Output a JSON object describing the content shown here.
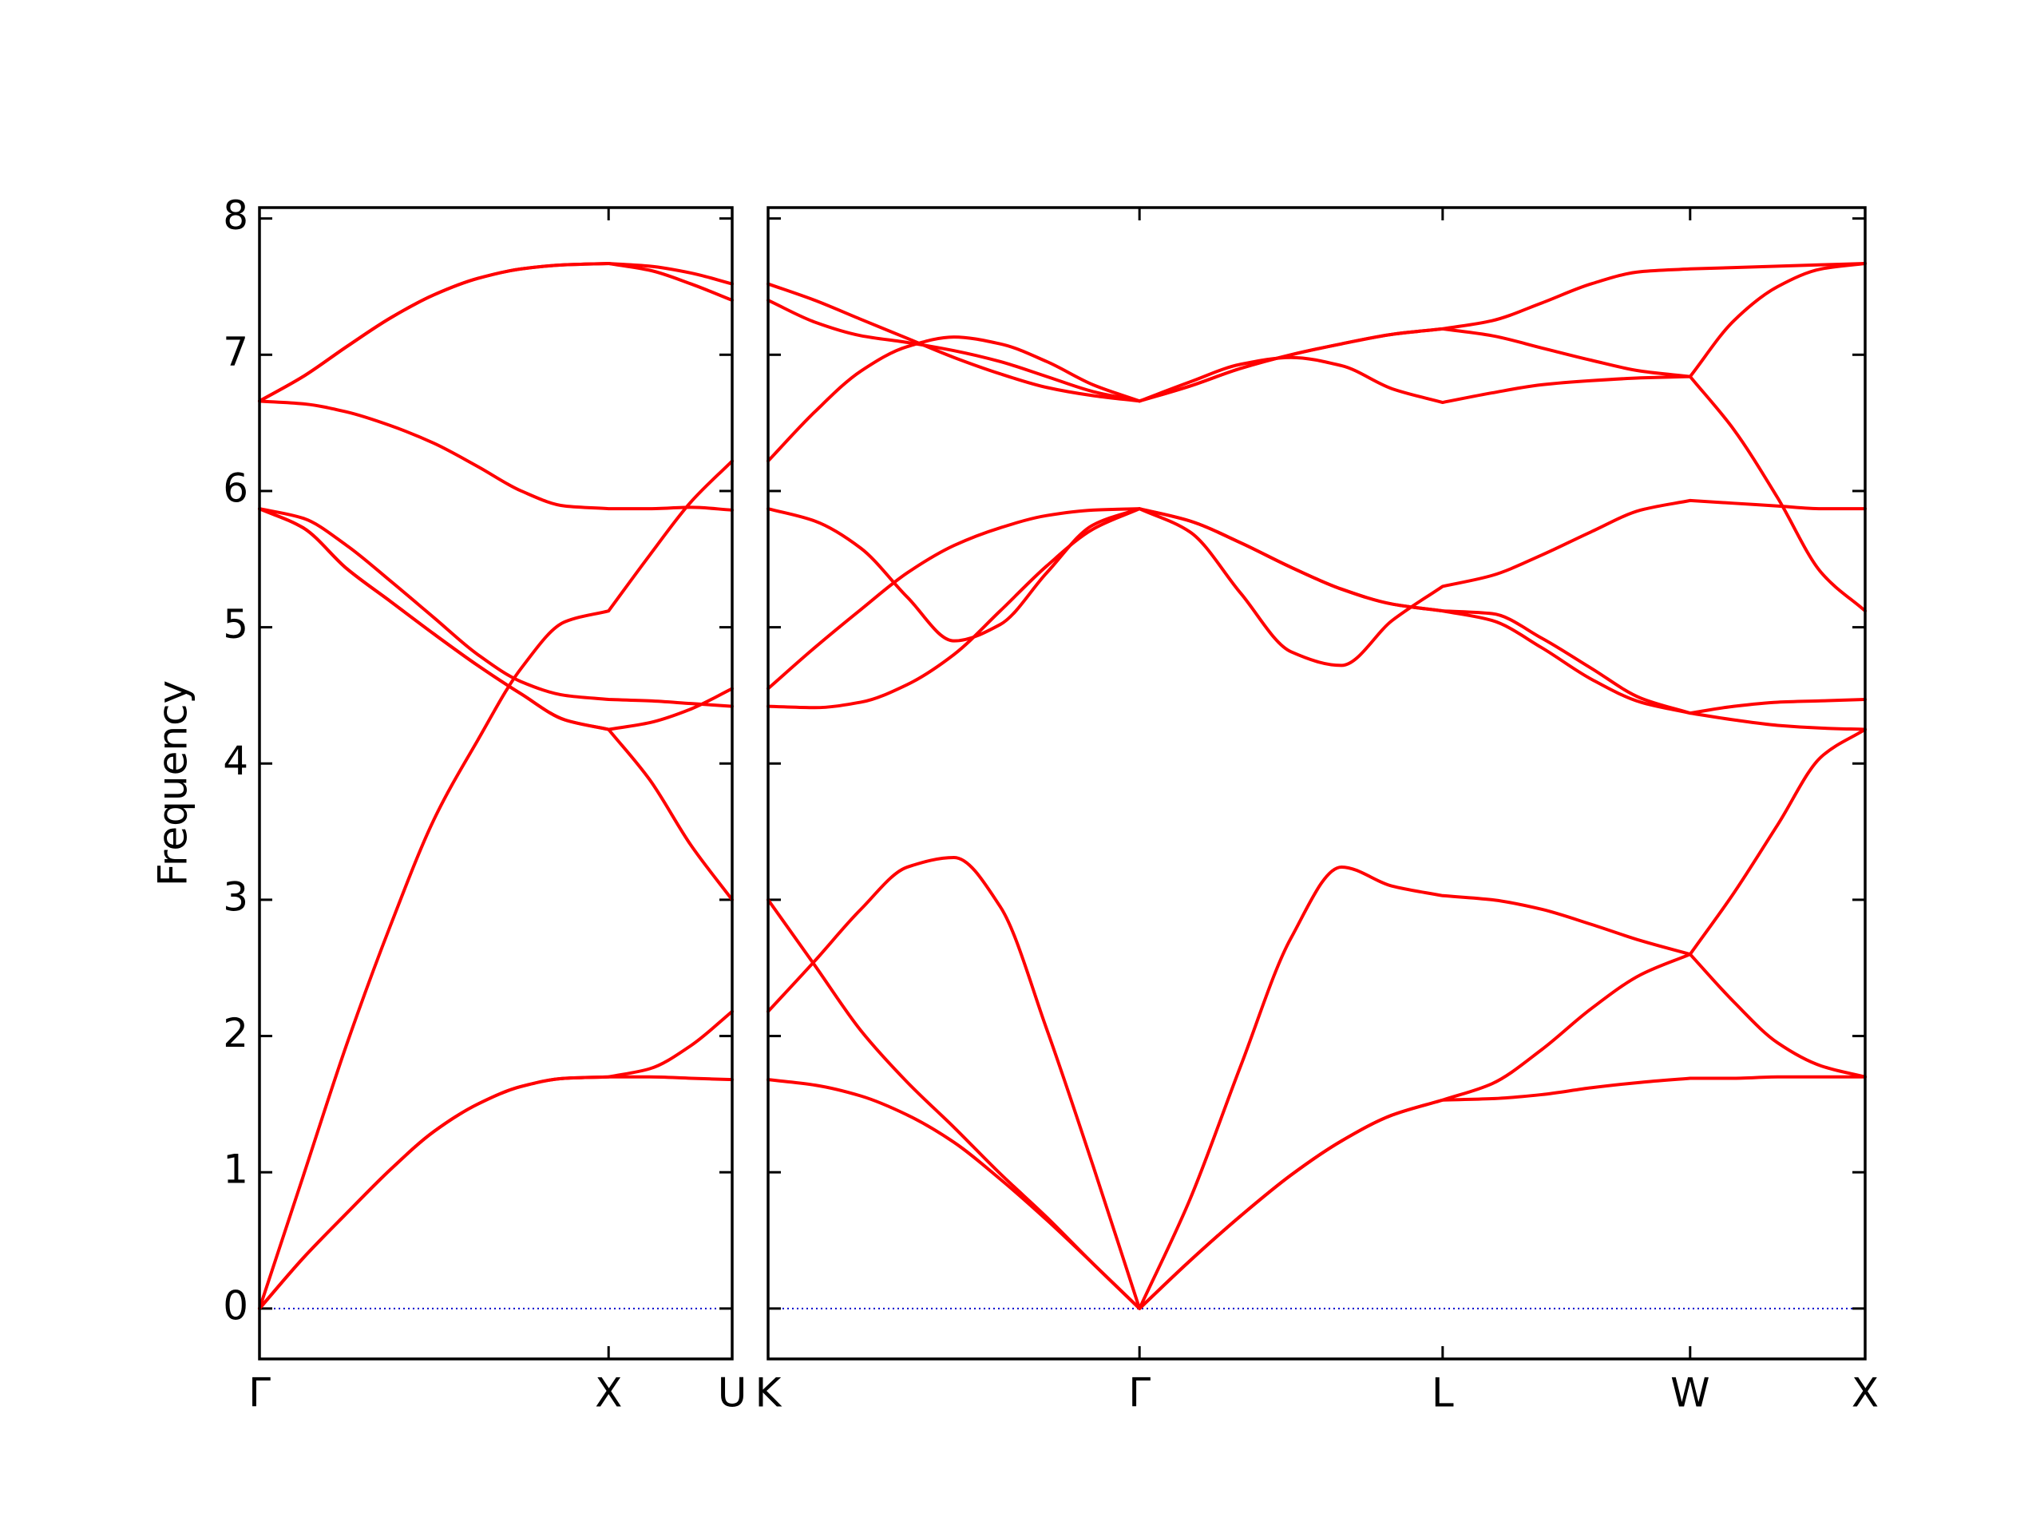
{
  "chart_data": [
    {
      "type": "line",
      "ylabel": "Frequency",
      "xlim": [
        0,
        1.354
      ],
      "ylim": [
        -0.37,
        8.08
      ],
      "xticks": [
        {
          "value": 0,
          "label": "Γ"
        },
        {
          "value": 1.0,
          "label": "X"
        },
        {
          "value": 1.354,
          "label": "U"
        }
      ],
      "yticks": [
        0,
        1,
        2,
        3,
        4,
        5,
        6,
        7,
        8
      ],
      "hline": {
        "y": 0,
        "color": "#0000cc"
      },
      "x": [
        0,
        0.125,
        0.25,
        0.375,
        0.5,
        0.625,
        0.75,
        0.875,
        1.0,
        1.118,
        1.236,
        1.354
      ],
      "series": [
        {
          "color": "#ff0000",
          "values": [
            0,
            0.37,
            0.7,
            1.02,
            1.3,
            1.5,
            1.63,
            1.69,
            1.7,
            1.7,
            1.69,
            1.68
          ]
        },
        {
          "color": "#ff0000",
          "values": [
            0,
            0.37,
            0.7,
            1.02,
            1.3,
            1.5,
            1.63,
            1.69,
            1.7,
            1.76,
            1.93,
            2.18
          ]
        },
        {
          "color": "#ff0000",
          "values": [
            0,
            0.97,
            1.94,
            2.81,
            3.59,
            4.17,
            4.7,
            5.04,
            5.12,
            5.53,
            5.92,
            6.22
          ]
        },
        {
          "color": "#ff0000",
          "values": [
            5.87,
            5.73,
            5.43,
            5.19,
            4.95,
            4.72,
            4.51,
            4.32,
            4.25,
            3.88,
            3.4,
            3.0
          ]
        },
        {
          "color": "#ff0000",
          "values": [
            5.87,
            5.73,
            5.43,
            5.19,
            4.95,
            4.72,
            4.51,
            4.32,
            4.25,
            4.3,
            4.4,
            4.55
          ]
        },
        {
          "color": "#ff0000",
          "values": [
            5.87,
            5.8,
            5.6,
            5.34,
            5.07,
            4.8,
            4.6,
            4.5,
            4.47,
            4.46,
            4.44,
            4.42
          ]
        },
        {
          "color": "#ff0000",
          "values": [
            6.66,
            6.64,
            6.58,
            6.48,
            6.35,
            6.18,
            6.0,
            5.89,
            5.87,
            5.87,
            5.88,
            5.86
          ]
        },
        {
          "color": "#ff0000",
          "values": [
            6.66,
            6.84,
            7.06,
            7.27,
            7.44,
            7.56,
            7.63,
            7.66,
            7.67,
            7.65,
            7.6,
            7.52
          ]
        },
        {
          "color": "#ff0000",
          "values": [
            6.66,
            6.84,
            7.06,
            7.27,
            7.44,
            7.56,
            7.63,
            7.66,
            7.67,
            7.62,
            7.52,
            7.4
          ]
        }
      ]
    },
    {
      "type": "line",
      "sharey": true,
      "xlim": [
        1.354,
        4.488
      ],
      "xticks": [
        {
          "value": 1.354,
          "label": "K"
        },
        {
          "value": 2.415,
          "label": "Γ"
        },
        {
          "value": 3.281,
          "label": "L"
        },
        {
          "value": 3.988,
          "label": "W"
        },
        {
          "value": 4.488,
          "label": "X"
        }
      ],
      "hline": {
        "y": 0,
        "color": "#0000cc"
      },
      "x": [
        1.354,
        1.487,
        1.619,
        1.752,
        1.885,
        2.017,
        2.15,
        2.282,
        2.415,
        2.559,
        2.704,
        2.848,
        2.992,
        3.137,
        3.281,
        3.422,
        3.564,
        3.705,
        3.847,
        3.988,
        4.113,
        4.238,
        4.363,
        4.488
      ],
      "series": [
        {
          "color": "#ff0000",
          "values": [
            1.68,
            1.64,
            1.56,
            1.42,
            1.22,
            0.95,
            0.65,
            0.33,
            0,
            0.35,
            0.68,
            0.98,
            1.23,
            1.42,
            1.53,
            1.54,
            1.57,
            1.62,
            1.66,
            1.69,
            1.69,
            1.7,
            1.7,
            1.7
          ]
        },
        {
          "color": "#ff0000",
          "values": [
            3.0,
            2.52,
            2.04,
            1.66,
            1.33,
            0.99,
            0.67,
            0.33,
            0,
            0.35,
            0.68,
            0.98,
            1.23,
            1.42,
            1.53,
            1.65,
            1.9,
            2.2,
            2.45,
            2.6,
            2.25,
            1.95,
            1.78,
            1.7
          ]
        },
        {
          "color": "#ff0000",
          "values": [
            2.18,
            2.55,
            2.93,
            3.24,
            3.31,
            2.95,
            2.05,
            1.05,
            0,
            0.8,
            1.78,
            2.72,
            3.24,
            3.1,
            3.03,
            3.0,
            2.93,
            2.82,
            2.7,
            2.6,
            3.05,
            3.55,
            4.05,
            4.25
          ]
        },
        {
          "color": "#ff0000",
          "values": [
            4.42,
            4.41,
            4.45,
            4.58,
            4.8,
            5.12,
            5.45,
            5.72,
            5.87,
            5.78,
            5.62,
            5.44,
            5.28,
            5.17,
            5.12,
            5.05,
            4.85,
            4.62,
            4.45,
            4.37,
            4.32,
            4.28,
            4.26,
            4.25
          ]
        },
        {
          "color": "#ff0000",
          "values": [
            4.55,
            4.85,
            5.13,
            5.4,
            5.6,
            5.73,
            5.82,
            5.86,
            5.87,
            5.78,
            5.62,
            5.44,
            5.28,
            5.17,
            5.12,
            5.1,
            4.92,
            4.7,
            4.48,
            4.37,
            4.42,
            4.45,
            4.46,
            4.47
          ]
        },
        {
          "color": "#ff0000",
          "values": [
            5.87,
            5.78,
            5.58,
            5.22,
            4.9,
            5.02,
            5.4,
            5.75,
            5.87,
            5.7,
            5.25,
            4.82,
            4.72,
            5.05,
            5.3,
            5.38,
            5.53,
            5.7,
            5.86,
            5.93,
            5.91,
            5.89,
            5.87,
            5.87
          ]
        },
        {
          "color": "#ff0000",
          "values": [
            6.22,
            6.58,
            6.88,
            7.06,
            7.13,
            7.08,
            6.95,
            6.78,
            6.66,
            6.8,
            6.93,
            6.98,
            6.92,
            6.75,
            6.65,
            6.72,
            6.78,
            6.81,
            6.83,
            6.84,
            6.45,
            5.95,
            5.4,
            5.12
          ]
        },
        {
          "color": "#ff0000",
          "values": [
            7.4,
            7.24,
            7.14,
            7.09,
            7.03,
            6.95,
            6.84,
            6.73,
            6.66,
            6.77,
            6.9,
            7.0,
            7.08,
            7.15,
            7.19,
            7.14,
            7.05,
            6.96,
            6.88,
            6.84,
            7.25,
            7.5,
            7.63,
            7.67
          ]
        },
        {
          "color": "#ff0000",
          "values": [
            7.52,
            7.4,
            7.26,
            7.12,
            6.98,
            6.86,
            6.76,
            6.7,
            6.66,
            6.77,
            6.9,
            7.0,
            7.08,
            7.15,
            7.19,
            7.25,
            7.38,
            7.52,
            7.61,
            7.63,
            7.64,
            7.65,
            7.66,
            7.67
          ]
        }
      ]
    }
  ]
}
